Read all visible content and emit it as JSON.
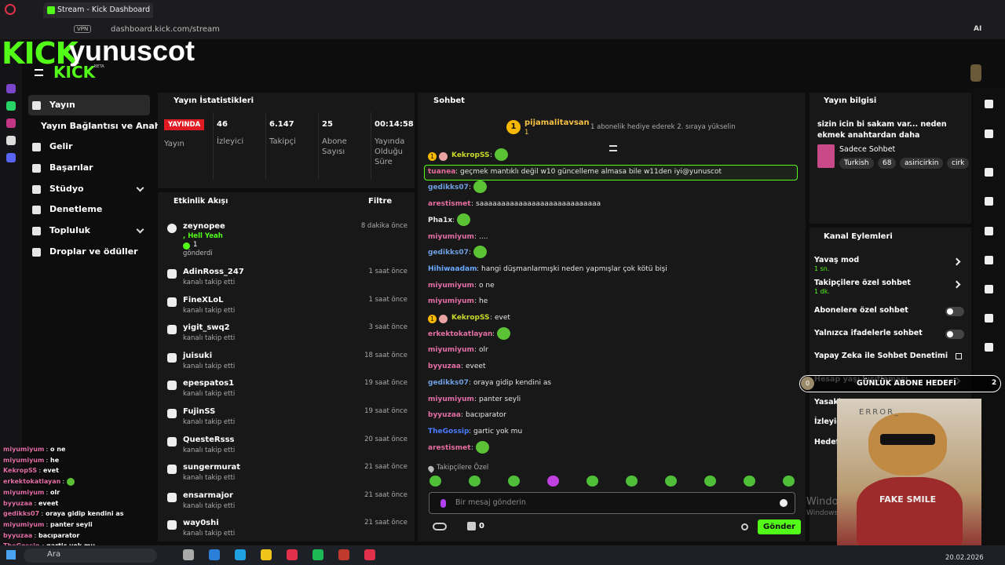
{
  "browser": {
    "tab_title": "Stream - Kick Dashboard",
    "vpn": "VPN",
    "url": "dashboard.kick.com/stream",
    "ai": "AI"
  },
  "overlay": {
    "logo": "KICK",
    "streamer": "yunuscot",
    "beta": "BETA"
  },
  "nav": [
    "Yayın",
    "Yayın Bağlantısı ve Anahtarı",
    "Gelir",
    "Başarılar",
    "Stüdyo",
    "Denetleme",
    "Topluluk",
    "Droplar ve ödüller"
  ],
  "stats": {
    "title": "Yayın İstatistikleri",
    "live": "YAYINDA",
    "label": "Yayın",
    "items": [
      {
        "value": "46",
        "label": "İzleyici"
      },
      {
        "value": "6.147",
        "label": "Takipçi"
      },
      {
        "value": "25",
        "label": "Abone Sayısı"
      },
      {
        "value": "00:14:58",
        "label": "Yayında Olduğu Süre"
      }
    ]
  },
  "activity": {
    "title": "Etkinlik Akışı",
    "filter": "Filtre",
    "items": [
      {
        "user": "zeynopee",
        "message": ", Hell Yeah",
        "amount": "1",
        "detail": "gönderdi",
        "time": "8 dakika önce"
      },
      {
        "user": "AdinRoss_247",
        "detail": "kanalı takip etti",
        "time": "1 saat önce"
      },
      {
        "user": "FineXLoL",
        "detail": "kanalı takip etti",
        "time": "1 saat önce"
      },
      {
        "user": "yigit_swq2",
        "detail": "kanalı takip etti",
        "time": "3 saat önce"
      },
      {
        "user": "juisuki",
        "detail": "kanalı takip etti",
        "time": "18 saat önce"
      },
      {
        "user": "epespatos1",
        "detail": "kanalı takip etti",
        "time": "19 saat önce"
      },
      {
        "user": "FujinSS",
        "detail": "kanalı takip etti",
        "time": "19 saat önce"
      },
      {
        "user": "QuesteRsss",
        "detail": "kanalı takip etti",
        "time": "20 saat önce"
      },
      {
        "user": "sungermurat",
        "detail": "kanalı takip etti",
        "time": "21 saat önce"
      },
      {
        "user": "ensarmajor",
        "detail": "kanalı takip etti",
        "time": "21 saat önce"
      },
      {
        "user": "way0shi",
        "detail": "kanalı takip etti",
        "time": "21 saat önce"
      }
    ]
  },
  "chat": {
    "title": "Sohbet",
    "pinned_rank": "1",
    "pinned_user": "pijamalitavsan",
    "pinned_count": "1",
    "notice": "1 abonelik hediye ederek 2. sıraya yükselin",
    "separator": ":",
    "messages": [
      {
        "badge": "1",
        "user": "KekropSS",
        "color": "#c9d92b",
        "emote": true
      },
      {
        "user": "tuanea",
        "color": "#e56aa0",
        "text": "geçmek mantıklı değil w10 güncelleme almasa bile w11den iyi@yunuscot",
        "highlight": true
      },
      {
        "user": "gedikks07",
        "color": "#6f9fe0",
        "emote": true
      },
      {
        "user": "arestismet",
        "color": "#e86fa0",
        "text": "saaaaaaaaaaaaaaaaaaaaaaaaaaaa"
      },
      {
        "user": "Pha1x",
        "color": "#e8e8e8",
        "emote": true
      },
      {
        "user": "miyumiyum",
        "color": "#e36fa6",
        "text": "...."
      },
      {
        "user": "gedikks07",
        "color": "#6f9fe0",
        "emote": true
      },
      {
        "user": "Hihiwaadam",
        "color": "#6aa8ff",
        "text": "hangi düşmanlarmışki neden yapmışlar çok kötü bişi"
      },
      {
        "user": "miyumiyum",
        "color": "#e36fa6",
        "text": "o ne"
      },
      {
        "user": "miyumiyum",
        "color": "#e36fa6",
        "text": "he"
      },
      {
        "badge": "1",
        "user": "KekropSS",
        "color": "#c9d92b",
        "text": "evet"
      },
      {
        "user": "erkektokatlayan",
        "color": "#e36fa6",
        "emote": true
      },
      {
        "user": "miyumiyum",
        "color": "#e36fa6",
        "text": "olr"
      },
      {
        "user": "byyuzaa",
        "color": "#e36fa6",
        "text": "eveet"
      },
      {
        "user": "gedikks07",
        "color": "#6f9fe0",
        "text": "oraya gidip kendini as"
      },
      {
        "user": "miyumiyum",
        "color": "#e36fa6",
        "text": "panter seyli"
      },
      {
        "user": "byyuzaa",
        "color": "#e36fa6",
        "text": "bacıparator"
      },
      {
        "user": "TheGossip",
        "color": "#4b7bff",
        "text": "gartic yok mu"
      },
      {
        "user": "arestismet",
        "color": "#e86fa0",
        "emote": true
      }
    ],
    "mode": "Takipçilere Özel",
    "placeholder": "Bir mesaj gönderin",
    "points": "0",
    "send": "Gönder"
  },
  "stream_info": {
    "title": "Yayın bilgisi",
    "text": "sizin icin bi sakam var... neden ekmek anahtardan daha lezzetlidir.... o asla s...",
    "category": "Sadece Sohbet",
    "tags": [
      "Turkish",
      "68",
      "asiricirkin",
      "cirk"
    ]
  },
  "channel_actions": {
    "title": "Kanal Eylemleri",
    "items": [
      {
        "label": "Yavaş mod",
        "sub": "1 sn.",
        "control": "arrow"
      },
      {
        "label": "Takipçilere özel sohbet",
        "sub": "1 dk.",
        "control": "arrow"
      },
      {
        "label": "Abonelere özel sohbet",
        "control": "toggle"
      },
      {
        "label": "Yalnızca ifadelerle sohbet",
        "control": "toggle"
      },
      {
        "label": "Yapay Zeka ile Sohbet Denetimi",
        "control": "link"
      },
      {
        "label": "Hesap yaşı kısıtlaması",
        "control": "arrow"
      },
      {
        "label": "Yasakl",
        "control": "arrow"
      },
      {
        "label": "İzleyic"
      },
      {
        "label": "Hedefl"
      }
    ]
  },
  "goal": {
    "current": "0",
    "title": "GÜNLÜK ABONE HEDEFİ",
    "target": "2"
  },
  "stream_overlay_chat": {
    "separator": " : ",
    "lines": [
      {
        "user": "miyumiyum",
        "text": "o ne"
      },
      {
        "user": "miyumiyum",
        "text": "he"
      },
      {
        "user": "KekropSS",
        "text": "evet"
      },
      {
        "user": "erkektokatlayan",
        "emote": true
      },
      {
        "user": "miyumiyum",
        "text": "olr"
      },
      {
        "user": "byyuzaa",
        "text": "eveet"
      },
      {
        "user": "gedikks07",
        "text": "oraya gidip kendini as"
      },
      {
        "user": "miyumiyum",
        "text": "panter seyli"
      },
      {
        "user": "byyuzaa",
        "text": "bacıparator"
      },
      {
        "user": "TheGossip",
        "text": "gartic yok mu"
      }
    ]
  },
  "webcam": {
    "top_text": "ERROR_",
    "shirt_text": "FAKE SMILE"
  },
  "watermark": [
    "Windo",
    "Windows"
  ],
  "taskbar": {
    "search": "Ara",
    "date": "20.02.2026"
  }
}
